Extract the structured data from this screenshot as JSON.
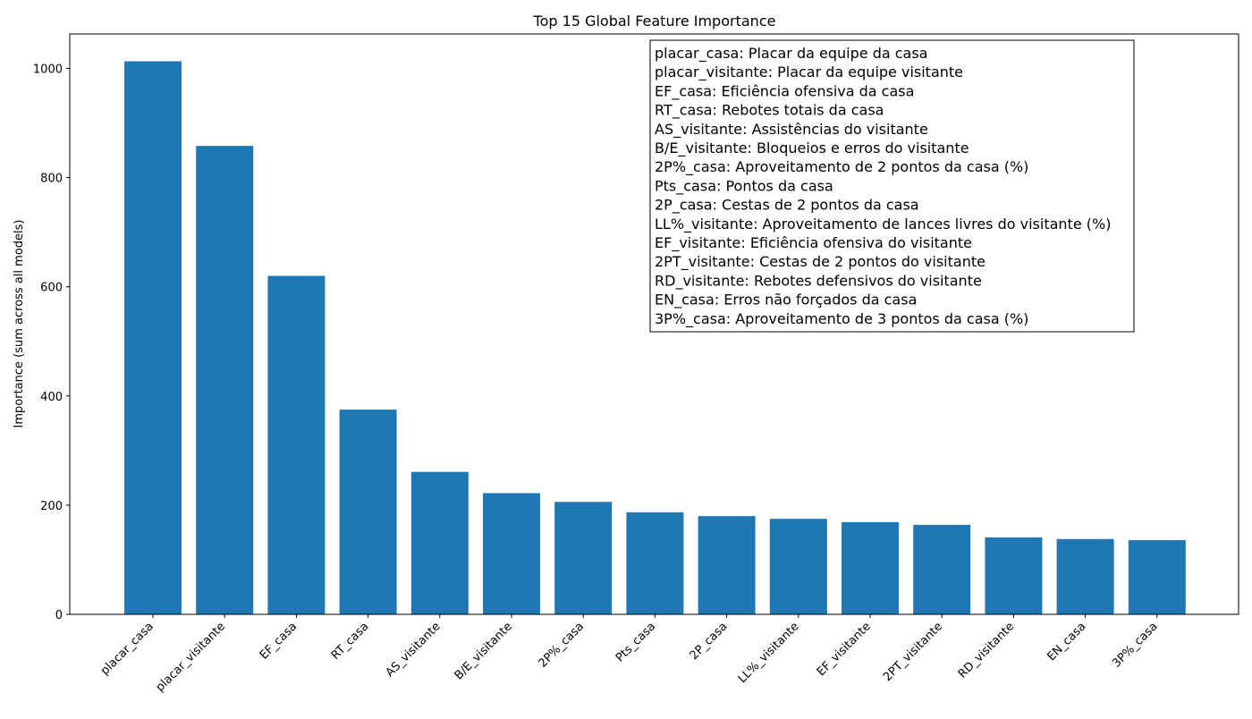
{
  "chart_data": {
    "type": "bar",
    "title": "Top 15 Global Feature Importance",
    "xlabel": "",
    "ylabel": "Importance (sum across all models)",
    "ylim": [
      0,
      1063
    ],
    "yticks": [
      0,
      200,
      400,
      600,
      800,
      1000
    ],
    "grid": false,
    "bar_color": "#1f77b4",
    "categories": [
      "placar_casa",
      "placar_visitante",
      "EF_casa",
      "RT_casa",
      "AS_visitante",
      "B/E_visitante",
      "2P%_casa",
      "Pts_casa",
      "2P_casa",
      "LL%_visitante",
      "EF_visitante",
      "2PT_visitante",
      "RD_visitante",
      "EN_casa",
      "3P%_casa"
    ],
    "values": [
      1013,
      858,
      620,
      375,
      261,
      222,
      206,
      187,
      180,
      175,
      169,
      164,
      141,
      138,
      136
    ],
    "legend_placement": "top-right",
    "legend_entries": [
      "placar_casa: Placar da equipe da casa",
      "placar_visitante: Placar da equipe visitante",
      "EF_casa: Eficiência ofensiva da casa",
      "RT_casa: Rebotes totais da casa",
      "AS_visitante: Assistências do visitante",
      "B/E_visitante: Bloqueios e erros do visitante",
      "2P%_casa: Aproveitamento de 2 pontos da casa (%)",
      "Pts_casa: Pontos da casa",
      "2P_casa: Cestas de 2 pontos da casa",
      "LL%_visitante: Aproveitamento de lances livres do visitante (%)",
      "EF_visitante: Eficiência ofensiva do visitante",
      "2PT_visitante: Cestas de 2 pontos do visitante",
      "RD_visitante: Rebotes defensivos do visitante",
      "EN_casa: Erros não forçados da casa",
      "3P%_casa: Aproveitamento de 3 pontos da casa (%)"
    ]
  }
}
